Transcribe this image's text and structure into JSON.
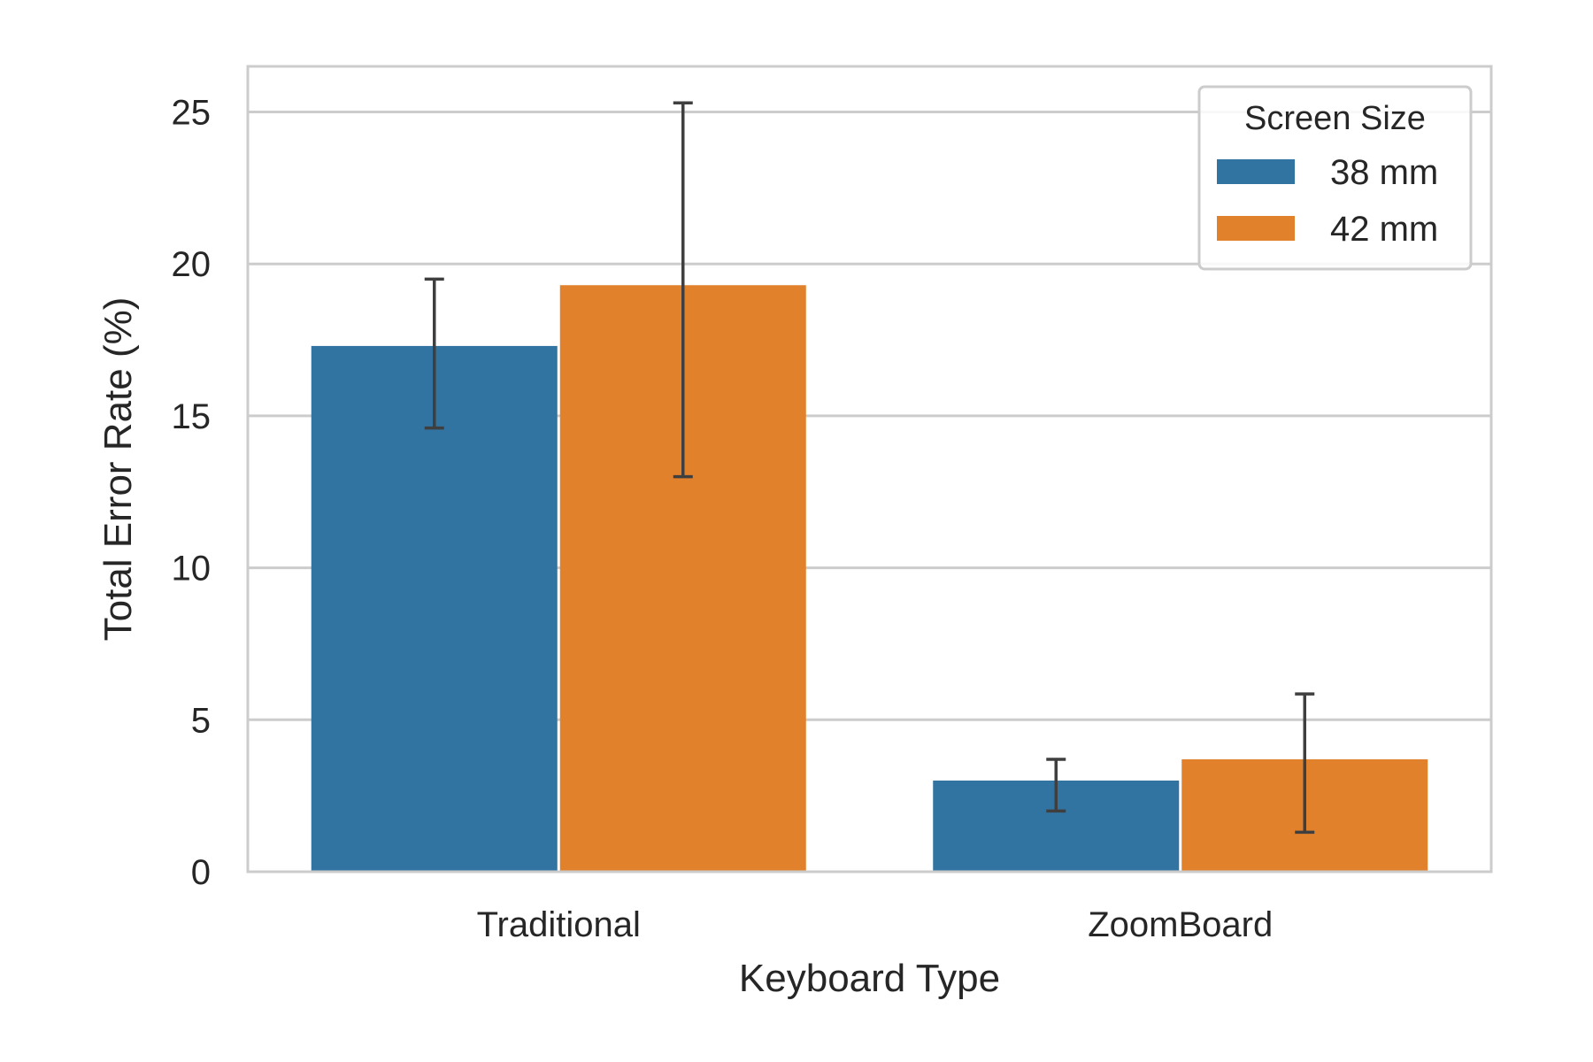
{
  "chart_data": {
    "type": "bar",
    "title": "",
    "xlabel": "Keyboard Type",
    "ylabel": "Total Error Rate (%)",
    "categories": [
      "Traditional",
      "ZoomBoard"
    ],
    "ylim": [
      0,
      26.5
    ],
    "yticks": [
      0,
      5,
      10,
      15,
      20,
      25
    ],
    "grid": true,
    "legend": {
      "title": "Screen Size",
      "placement": "top-right"
    },
    "series": [
      {
        "name": "38 mm",
        "color": "#3274a1",
        "values": [
          17.3,
          3.0
        ],
        "error_low": [
          14.6,
          2.0
        ],
        "error_high": [
          19.5,
          3.7
        ]
      },
      {
        "name": "42 mm",
        "color": "#e1812c",
        "values": [
          19.3,
          3.7
        ],
        "error_low": [
          13.0,
          1.3
        ],
        "error_high": [
          25.3,
          5.85
        ]
      }
    ]
  }
}
